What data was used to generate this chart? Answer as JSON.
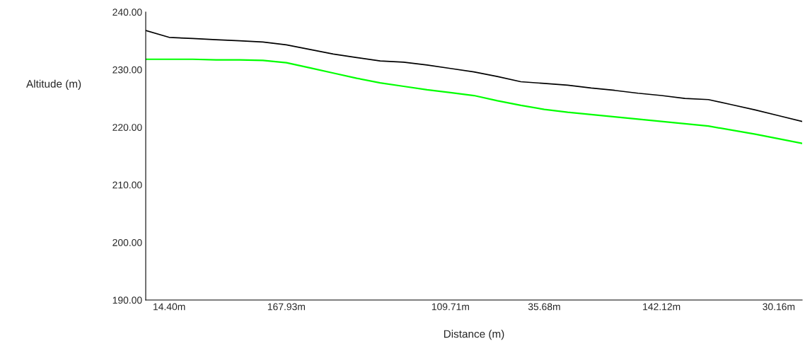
{
  "chart_data": {
    "type": "line",
    "xlabel": "Distance (m)",
    "ylabel": "Altitude (m)",
    "categories": [
      null,
      "14.40m",
      null,
      null,
      null,
      null,
      "167.93m",
      null,
      null,
      null,
      null,
      null,
      null,
      "109.71m",
      null,
      null,
      null,
      "35.68m",
      null,
      null,
      null,
      null,
      "142.12m",
      null,
      null,
      null,
      null,
      "30.16m",
      null
    ],
    "ylim": [
      190,
      240
    ],
    "yticks": [
      {
        "value": 190,
        "label": "190.00"
      },
      {
        "value": 200,
        "label": "200.00"
      },
      {
        "value": 210,
        "label": "210.00"
      },
      {
        "value": 220,
        "label": "220.00"
      },
      {
        "value": 230,
        "label": "230.00"
      },
      {
        "value": 240,
        "label": "240.00"
      }
    ],
    "grid": false,
    "legend": false,
    "marker": "none",
    "line_style": "solid",
    "series": [
      {
        "color": "#000000",
        "values": [
          236.8,
          235.6,
          235.4,
          235.2,
          235.0,
          234.8,
          234.3,
          233.5,
          232.7,
          232.1,
          231.5,
          231.3,
          230.8,
          230.2,
          229.6,
          228.8,
          227.9,
          227.6,
          227.3,
          226.8,
          226.4,
          225.9,
          225.5,
          225.0,
          224.8,
          223.9,
          223.0,
          222.0,
          221.0
        ]
      },
      {
        "color": "#00ff00",
        "values": [
          231.8,
          231.8,
          231.8,
          231.7,
          231.7,
          231.6,
          231.2,
          230.3,
          229.4,
          228.5,
          227.7,
          227.1,
          226.5,
          226.0,
          225.5,
          224.6,
          223.8,
          223.1,
          222.6,
          222.2,
          221.8,
          221.4,
          221.0,
          220.6,
          220.2,
          219.5,
          218.8,
          218.0,
          217.2
        ]
      }
    ]
  }
}
